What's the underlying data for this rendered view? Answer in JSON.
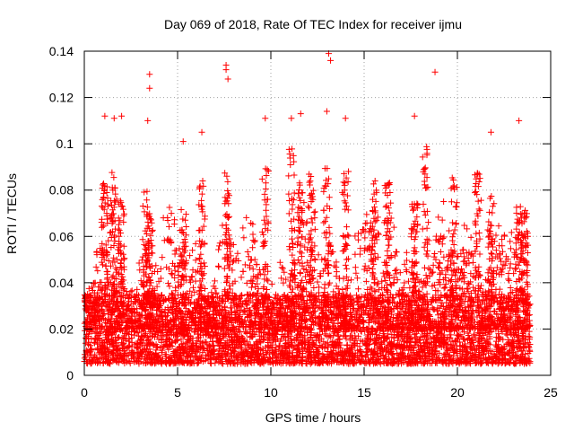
{
  "chart_data": {
    "type": "scatter",
    "title": "Day 069 of 2018, Rate Of TEC Index for receiver ijmu",
    "xlabel": "GPS time / hours",
    "ylabel": "ROTI / TECUs",
    "xlim": [
      0,
      25
    ],
    "ylim": [
      0,
      0.14
    ],
    "x_ticks": [
      0,
      5,
      10,
      15,
      20,
      25
    ],
    "x_tick_labels": [
      "0",
      "5",
      "10",
      "15",
      "20",
      "25"
    ],
    "y_ticks": [
      0,
      0.02,
      0.04,
      0.06,
      0.08,
      0.1,
      0.12,
      0.14
    ],
    "y_tick_labels": [
      "0",
      "0.02",
      "0.04",
      "0.06",
      "0.08",
      "0.1",
      "0.12",
      "0.14"
    ],
    "grid": true,
    "marker": "+",
    "color": "#ff0000",
    "data_x_range": [
      0,
      23.9
    ],
    "baseline_band": [
      0.005,
      0.03
    ],
    "notable_points": [
      {
        "x": 3.5,
        "y": 0.13
      },
      {
        "x": 3.5,
        "y": 0.124
      },
      {
        "x": 7.6,
        "y": 0.134
      },
      {
        "x": 7.6,
        "y": 0.132
      },
      {
        "x": 7.7,
        "y": 0.128
      },
      {
        "x": 13.1,
        "y": 0.139
      },
      {
        "x": 13.2,
        "y": 0.136
      },
      {
        "x": 18.8,
        "y": 0.131
      },
      {
        "x": 1.1,
        "y": 0.112
      },
      {
        "x": 1.6,
        "y": 0.111
      },
      {
        "x": 2.0,
        "y": 0.112
      },
      {
        "x": 3.4,
        "y": 0.11
      },
      {
        "x": 9.7,
        "y": 0.111
      },
      {
        "x": 11.1,
        "y": 0.111
      },
      {
        "x": 11.6,
        "y": 0.113
      },
      {
        "x": 13.0,
        "y": 0.114
      },
      {
        "x": 14.0,
        "y": 0.111
      },
      {
        "x": 17.7,
        "y": 0.112
      },
      {
        "x": 23.3,
        "y": 0.11
      },
      {
        "x": 21.8,
        "y": 0.105
      },
      {
        "x": 5.3,
        "y": 0.101
      },
      {
        "x": 6.3,
        "y": 0.105
      }
    ]
  }
}
